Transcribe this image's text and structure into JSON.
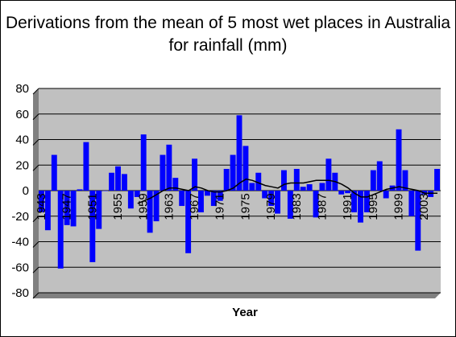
{
  "chart_data": {
    "type": "bar",
    "title": "Derivations from the mean of 5 most wet places in Australia for rainfall (mm)",
    "xlabel": "Year",
    "ylabel": "",
    "ylim": [
      -80,
      80
    ],
    "yticks": [
      -80,
      -60,
      -40,
      -20,
      0,
      20,
      40,
      60,
      80
    ],
    "grid": true,
    "legend": "none",
    "colors": {
      "bars": "#0000ff",
      "line": "#000000",
      "plot_bg": "#c0c0c0",
      "grid": "#000000"
    },
    "x_tick_labels": [
      {
        "year": 1943,
        "label": "1943"
      },
      {
        "year": 1947,
        "label": "1947"
      },
      {
        "year": 1951,
        "label": "1951"
      },
      {
        "year": 1955,
        "label": "1955"
      },
      {
        "year": 1959,
        "label": "1959"
      },
      {
        "year": 1963,
        "label": "1963"
      },
      {
        "year": 1967,
        "label": "1967"
      },
      {
        "year": 1971,
        "label": "1971"
      },
      {
        "year": 1975,
        "label": "1975"
      },
      {
        "year": 1979,
        "label": "1979"
      },
      {
        "year": 1983,
        "label": "1983"
      },
      {
        "year": 1987,
        "label": "1987"
      },
      {
        "year": 1991,
        "label": "1991"
      },
      {
        "year": 1995,
        "label": "1995"
      },
      {
        "year": 1999,
        "label": "1999"
      },
      {
        "year": 2003,
        "label": "2003"
      }
    ],
    "series": [
      {
        "name": "",
        "kind": "bar",
        "x": [
          1943,
          1944,
          1945,
          1946,
          1947,
          1948,
          1949,
          1950,
          1951,
          1952,
          1953,
          1954,
          1955,
          1956,
          1957,
          1958,
          1959,
          1960,
          1961,
          1962,
          1963,
          1964,
          1965,
          1966,
          1967,
          1968,
          1969,
          1970,
          1971,
          1972,
          1973,
          1974,
          1975,
          1976,
          1977,
          1978,
          1979,
          1980,
          1981,
          1982,
          1983,
          1984,
          1985,
          1986,
          1987,
          1988,
          1989,
          1990,
          1991,
          1992,
          1993,
          1994,
          1995,
          1996,
          1997,
          1998,
          1999,
          2000,
          2001,
          2002,
          2003,
          2004,
          2005
        ],
        "values": [
          -17,
          -31,
          28,
          -61,
          -27,
          -28,
          1,
          38,
          -56,
          -30,
          0,
          14,
          19,
          13,
          -14,
          -5,
          44,
          -33,
          -24,
          28,
          36,
          10,
          -12,
          -49,
          25,
          -17,
          -4,
          -12,
          -8,
          17,
          28,
          59,
          35,
          6,
          14,
          -6,
          -12,
          -18,
          16,
          -22,
          17,
          3,
          5,
          -21,
          6,
          25,
          14,
          -3,
          -2,
          -17,
          -25,
          -17,
          16,
          23,
          -6,
          4,
          48,
          16,
          -20,
          -47,
          -3,
          -5,
          17
        ]
      },
      {
        "name": "",
        "kind": "line",
        "x": [
          1958,
          1959,
          1960,
          1961,
          1962,
          1963,
          1964,
          1965,
          1966,
          1967,
          1968,
          1969,
          1970,
          1971,
          1972,
          1973,
          1974,
          1975,
          1976,
          1977,
          1978,
          1979,
          1980,
          1981,
          1982,
          1983,
          1984,
          1985,
          1986,
          1987,
          1988,
          1989,
          1990,
          1991,
          1992,
          1993,
          1994,
          1995,
          1996,
          1997,
          1998,
          1999,
          2000,
          2001,
          2002,
          2003,
          2004,
          2005
        ],
        "values": [
          -10,
          -8,
          -6,
          -3,
          0,
          2,
          2,
          1,
          0,
          3,
          2,
          0,
          -1,
          -1,
          0,
          2,
          6,
          9,
          8,
          6,
          4,
          3,
          2,
          5,
          6,
          6,
          6,
          7,
          8,
          8,
          8,
          7,
          5,
          2,
          -2,
          -5,
          -5,
          -3,
          -1,
          1,
          2,
          3,
          2,
          1,
          0,
          -2,
          -2,
          -2
        ]
      }
    ]
  }
}
